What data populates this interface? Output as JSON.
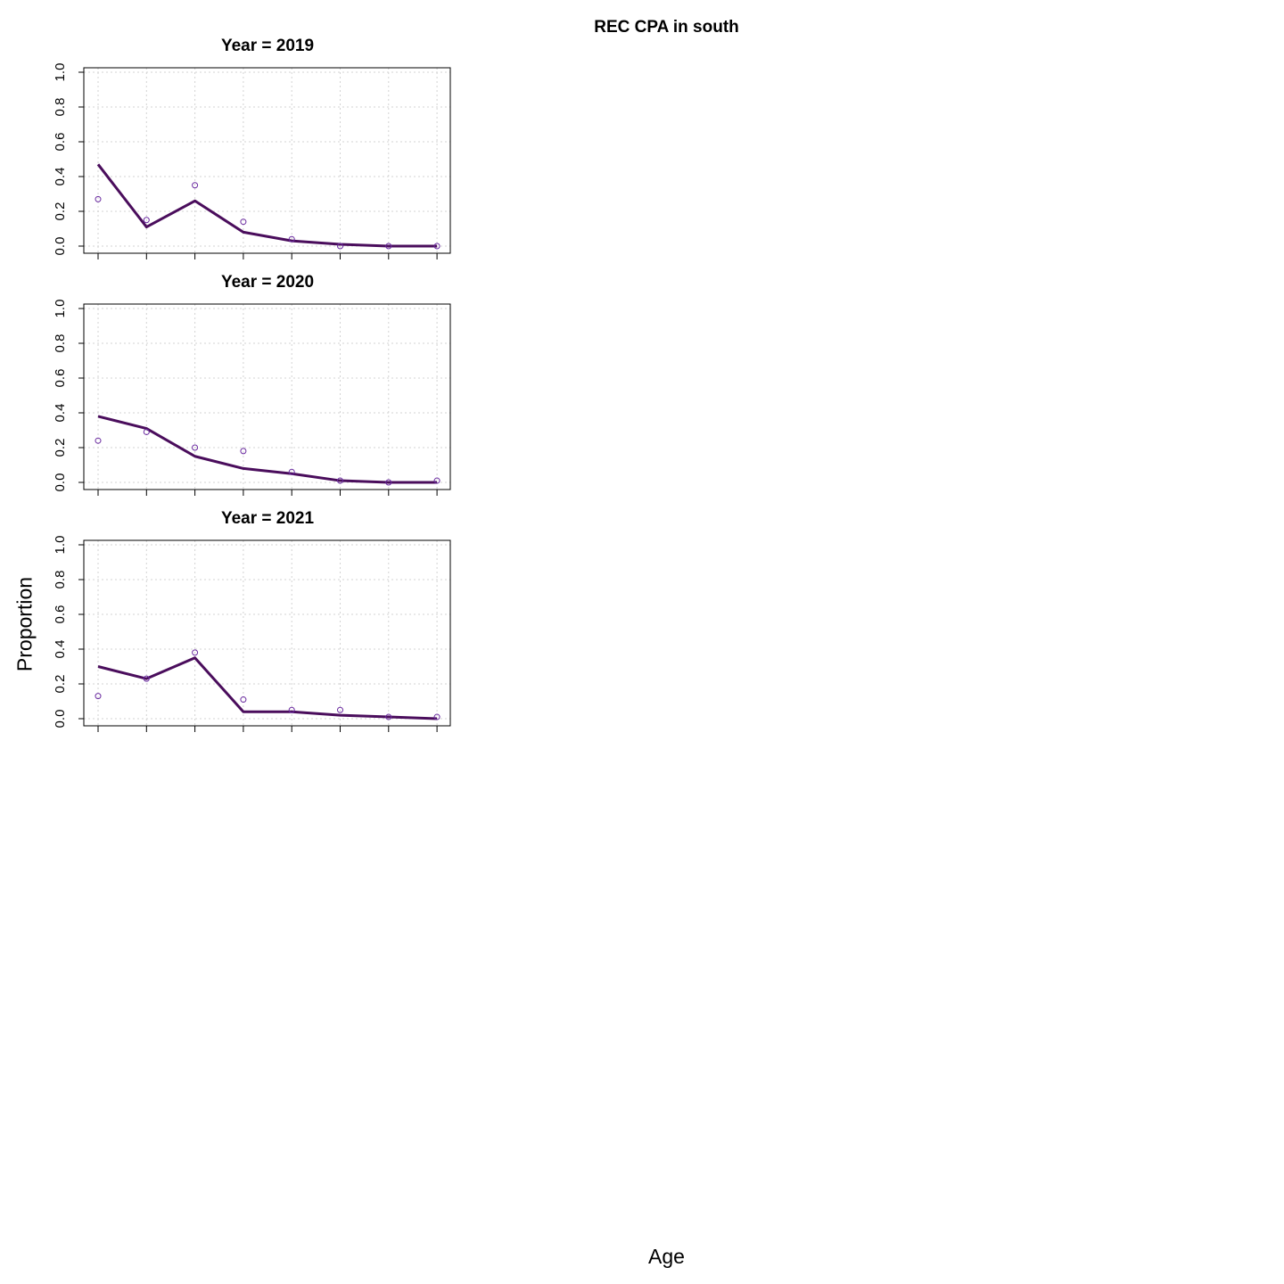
{
  "title": "REC CPA in south",
  "xlabel": "Age",
  "ylabel": "Proportion",
  "chart_data": [
    {
      "type": "line",
      "title": "Year = 2019",
      "x": [
        1,
        2,
        3,
        4,
        5,
        6,
        7,
        8
      ],
      "ylim": [
        0,
        1
      ],
      "yticks": [
        "0.0",
        "0.2",
        "0.4",
        "0.6",
        "0.8",
        "1.0"
      ],
      "grid": true,
      "series": [
        {
          "style": "line",
          "values": [
            0.47,
            0.11,
            0.26,
            0.08,
            0.03,
            0.01,
            0.0,
            0.0
          ],
          "color": "#4a0d5c"
        },
        {
          "style": "points",
          "values": [
            0.27,
            0.15,
            0.35,
            0.14,
            0.04,
            0.0,
            0.0,
            0.0
          ],
          "color": "#6a2aa0"
        }
      ]
    },
    {
      "type": "line",
      "title": "Year = 2020",
      "x": [
        1,
        2,
        3,
        4,
        5,
        6,
        7,
        8
      ],
      "ylim": [
        0,
        1
      ],
      "yticks": [
        "0.0",
        "0.2",
        "0.4",
        "0.6",
        "0.8",
        "1.0"
      ],
      "grid": true,
      "series": [
        {
          "style": "line",
          "values": [
            0.38,
            0.31,
            0.15,
            0.08,
            0.05,
            0.01,
            0.0,
            0.0
          ],
          "color": "#4a0d5c"
        },
        {
          "style": "points",
          "values": [
            0.24,
            0.29,
            0.2,
            0.18,
            0.06,
            0.01,
            0.0,
            0.01
          ],
          "color": "#6a2aa0"
        }
      ]
    },
    {
      "type": "line",
      "title": "Year = 2021",
      "x": [
        1,
        2,
        3,
        4,
        5,
        6,
        7,
        8
      ],
      "ylim": [
        0,
        1
      ],
      "yticks": [
        "0.0",
        "0.2",
        "0.4",
        "0.6",
        "0.8",
        "1.0"
      ],
      "grid": true,
      "series": [
        {
          "style": "line",
          "values": [
            0.3,
            0.23,
            0.35,
            0.04,
            0.04,
            0.02,
            0.01,
            0.0
          ],
          "color": "#4a0d5c"
        },
        {
          "style": "points",
          "values": [
            0.13,
            0.23,
            0.38,
            0.11,
            0.05,
            0.05,
            0.01,
            0.01
          ],
          "color": "#6a2aa0"
        }
      ]
    }
  ]
}
